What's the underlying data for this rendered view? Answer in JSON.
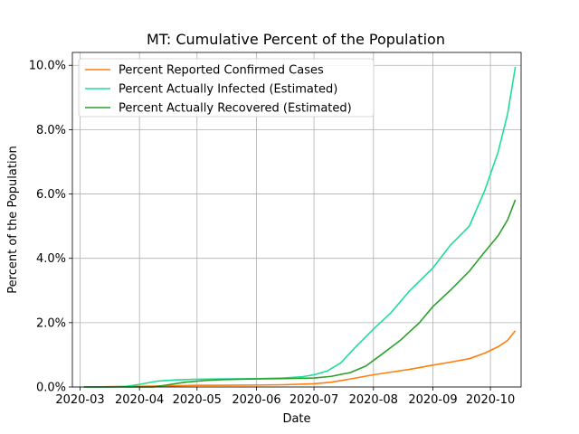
{
  "chart_data": {
    "type": "line",
    "title": "MT: Cumulative Percent of the Population",
    "xlabel": "Date",
    "ylabel": "Percent of the Population",
    "x_axis_kind": "date",
    "xlim": [
      "2020-02-26",
      "2020-10-17"
    ],
    "ylim": [
      0,
      10.4
    ],
    "grid": true,
    "legend_position": "top-left",
    "x_ticks": [
      "2020-03-01",
      "2020-04-01",
      "2020-05-01",
      "2020-06-01",
      "2020-07-01",
      "2020-08-01",
      "2020-09-01",
      "2020-10-01"
    ],
    "x_tick_labels": [
      "2020-03",
      "2020-04",
      "2020-05",
      "2020-06",
      "2020-07",
      "2020-08",
      "2020-09",
      "2020-10"
    ],
    "y_ticks": [
      0,
      2,
      4,
      6,
      8,
      10
    ],
    "y_tick_labels": [
      "0.0%",
      "2.0%",
      "4.0%",
      "6.0%",
      "8.0%",
      "10.0%"
    ],
    "series": [
      {
        "name": "Percent Reported Confirmed Cases",
        "color": "#ff7f0e",
        "points": [
          [
            "2020-03-03",
            0
          ],
          [
            "2020-04-01",
            0.02
          ],
          [
            "2020-05-01",
            0.05
          ],
          [
            "2020-06-01",
            0.06
          ],
          [
            "2020-06-15",
            0.07
          ],
          [
            "2020-07-01",
            0.1
          ],
          [
            "2020-07-10",
            0.15
          ],
          [
            "2020-07-20",
            0.25
          ],
          [
            "2020-08-01",
            0.38
          ],
          [
            "2020-08-10",
            0.46
          ],
          [
            "2020-08-20",
            0.55
          ],
          [
            "2020-09-01",
            0.68
          ],
          [
            "2020-09-10",
            0.77
          ],
          [
            "2020-09-20",
            0.88
          ],
          [
            "2020-09-28",
            1.05
          ],
          [
            "2020-10-05",
            1.25
          ],
          [
            "2020-10-10",
            1.45
          ],
          [
            "2020-10-14",
            1.75
          ]
        ]
      },
      {
        "name": "Percent Actually Infected (Estimated)",
        "color": "#1ddf95",
        "points": [
          [
            "2020-03-03",
            0
          ],
          [
            "2020-03-15",
            0
          ],
          [
            "2020-03-25",
            0.02
          ],
          [
            "2020-04-01",
            0.08
          ],
          [
            "2020-04-10",
            0.18
          ],
          [
            "2020-04-20",
            0.22
          ],
          [
            "2020-05-01",
            0.24
          ],
          [
            "2020-05-15",
            0.25
          ],
          [
            "2020-06-01",
            0.26
          ],
          [
            "2020-06-15",
            0.28
          ],
          [
            "2020-06-25",
            0.32
          ],
          [
            "2020-07-01",
            0.38
          ],
          [
            "2020-07-08",
            0.5
          ],
          [
            "2020-07-15",
            0.75
          ],
          [
            "2020-07-22",
            1.2
          ],
          [
            "2020-08-01",
            1.8
          ],
          [
            "2020-08-10",
            2.3
          ],
          [
            "2020-08-20",
            3.0
          ],
          [
            "2020-09-01",
            3.7
          ],
          [
            "2020-09-10",
            4.4
          ],
          [
            "2020-09-20",
            5.0
          ],
          [
            "2020-09-28",
            6.1
          ],
          [
            "2020-10-05",
            7.3
          ],
          [
            "2020-10-10",
            8.5
          ],
          [
            "2020-10-14",
            9.95
          ]
        ]
      },
      {
        "name": "Percent Actually Recovered (Estimated)",
        "color": "#2ca02c",
        "points": [
          [
            "2020-03-03",
            0
          ],
          [
            "2020-04-08",
            0
          ],
          [
            "2020-04-15",
            0.06
          ],
          [
            "2020-04-25",
            0.15
          ],
          [
            "2020-05-05",
            0.2
          ],
          [
            "2020-05-15",
            0.23
          ],
          [
            "2020-06-01",
            0.25
          ],
          [
            "2020-06-15",
            0.26
          ],
          [
            "2020-07-01",
            0.28
          ],
          [
            "2020-07-10",
            0.33
          ],
          [
            "2020-07-20",
            0.45
          ],
          [
            "2020-07-28",
            0.65
          ],
          [
            "2020-08-05",
            1.0
          ],
          [
            "2020-08-15",
            1.45
          ],
          [
            "2020-08-25",
            2.0
          ],
          [
            "2020-09-01",
            2.5
          ],
          [
            "2020-09-10",
            3.0
          ],
          [
            "2020-09-20",
            3.6
          ],
          [
            "2020-09-28",
            4.2
          ],
          [
            "2020-10-05",
            4.7
          ],
          [
            "2020-10-10",
            5.2
          ],
          [
            "2020-10-14",
            5.82
          ]
        ]
      }
    ]
  }
}
